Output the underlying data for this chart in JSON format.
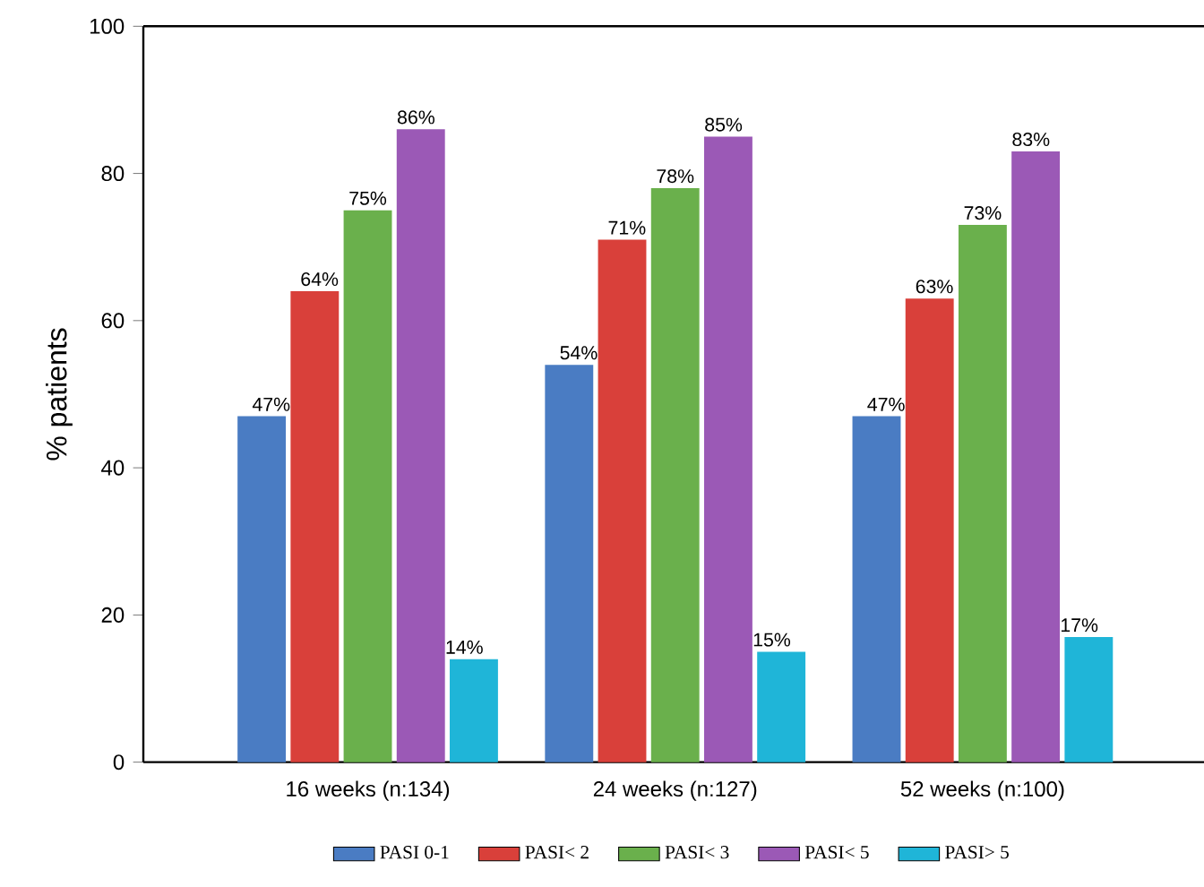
{
  "chart_data": {
    "type": "bar",
    "ylabel": "% patients",
    "categories": [
      "16 weeks (n:134)",
      "24 weeks (n:127)",
      "52 weeks (n:100)"
    ],
    "series": [
      {
        "name": "PASI 0-1",
        "color": "#4a7cc3",
        "values": [
          47,
          54,
          47
        ],
        "value_labels": [
          "47%",
          "54%",
          "47%"
        ]
      },
      {
        "name": "PASI< 2",
        "color": "#d9403a",
        "values": [
          64,
          71,
          63
        ],
        "value_labels": [
          "64%",
          "71%",
          "63%"
        ]
      },
      {
        "name": "PASI< 3",
        "color": "#6ab04c",
        "values": [
          75,
          78,
          73
        ],
        "value_labels": [
          "75%",
          "78%",
          "73%"
        ]
      },
      {
        "name": "PASI< 5",
        "color": "#9b59b6",
        "values": [
          86,
          85,
          83
        ],
        "value_labels": [
          "86%",
          "85%",
          "83%"
        ]
      },
      {
        "name": "PASI> 5",
        "color": "#1fb5d8",
        "values": [
          14,
          15,
          17
        ],
        "value_labels": [
          "14%",
          "15%",
          "17%"
        ]
      }
    ],
    "ylim": [
      0,
      100
    ],
    "yticks": [
      0,
      20,
      40,
      60,
      80,
      100
    ],
    "grid": false,
    "legend": "bottom"
  }
}
